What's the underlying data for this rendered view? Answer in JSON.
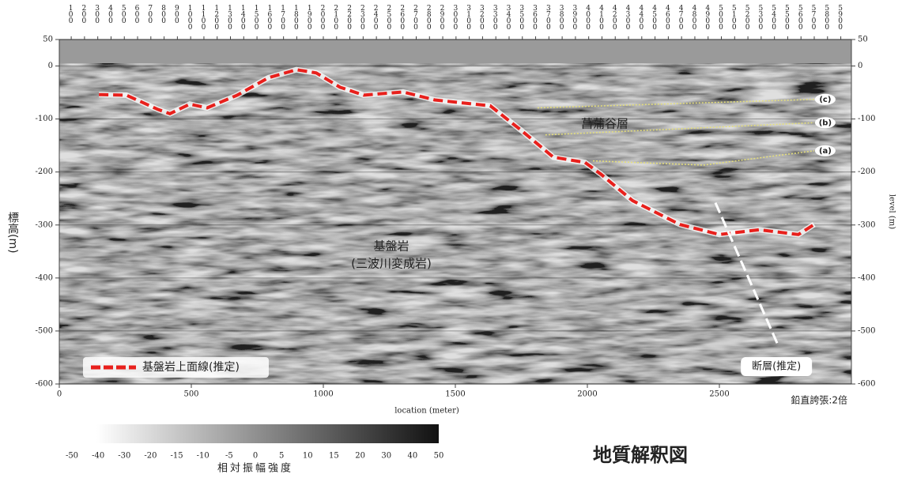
{
  "chart_data": {
    "type": "line",
    "title": "地質解釈図",
    "x_label": "location (meter)",
    "y_label": "標高(m)",
    "y2_label": "level (m)",
    "xlim": [
      0,
      3000
    ],
    "xticks": [
      0,
      500,
      1000,
      1500,
      2000,
      2500
    ],
    "ylim": [
      -600,
      50
    ],
    "yticks": [
      50,
      0,
      -100,
      -200,
      -300,
      -400,
      -500,
      -600
    ],
    "y2lim": [
      -600,
      50
    ],
    "y2ticks": [
      50,
      0,
      -100,
      -200,
      -300,
      -400,
      -500,
      -600
    ],
    "x2lim": [
      10,
      5980
    ],
    "x2ticks": [
      100,
      200,
      300,
      400,
      500,
      600,
      700,
      800,
      900,
      1000,
      1100,
      1200,
      1300,
      1400,
      1500,
      1600,
      1700,
      1800,
      1900,
      2000,
      2100,
      2200,
      2300,
      2400,
      2500,
      2600,
      2700,
      2800,
      2900,
      3000,
      3100,
      3200,
      3300,
      3400,
      3500,
      3600,
      3700,
      3800,
      3900,
      4000,
      4100,
      4200,
      4300,
      4400,
      4500,
      4600,
      4700,
      4800,
      4900,
      5000,
      5100,
      5200,
      5300,
      5400,
      5500,
      5600,
      5700,
      5800,
      5900
    ],
    "series": [
      {
        "name": "基盤岩上面線(推定)",
        "color": "#e8201c",
        "style": "legend",
        "x": [
          150,
          254,
          374,
          419,
          494,
          560,
          674,
          793,
          898,
          973,
          1063,
          1153,
          1302,
          1422,
          1572,
          1632,
          1751,
          1871,
          1991,
          2051,
          2171,
          2350,
          2500,
          2650,
          2799,
          2859
        ],
        "values": [
          -54,
          -55,
          -82,
          -90,
          -72,
          -79,
          -55,
          -22,
          -7,
          -13,
          -40,
          -55,
          -49,
          -64,
          -72,
          -75,
          -122,
          -172,
          -182,
          -204,
          -254,
          -299,
          -318,
          -309,
          -318,
          -299
        ]
      },
      {
        "name": "(c)",
        "color": "#e6e07a",
        "style": "end-label",
        "x": [
          1811,
          2859
        ],
        "values": [
          -79,
          -63
        ]
      },
      {
        "name": "(b)",
        "color": "#e6e07a",
        "style": "end-label",
        "x": [
          1841,
          2859
        ],
        "values": [
          -130,
          -107
        ]
      },
      {
        "name": "(a)",
        "color": "#e6e07a",
        "style": "end-label",
        "x": [
          2021,
          2440,
          2859
        ],
        "values": [
          -179,
          -187,
          -160
        ]
      },
      {
        "name": "断層(推定)",
        "color": "#ffffff",
        "style": "fault",
        "x": [
          2485,
          2725
        ],
        "values": [
          -258,
          -530
        ]
      }
    ],
    "annotations": {
      "bedrock": "基盤岩",
      "bedrock_note": "(三波川変成岩)",
      "formation": "菖蒲谷層",
      "exaggeration": "鉛直誇張:2倍"
    },
    "colorbar": {
      "title": "相対振幅強度",
      "ticks": [
        -50,
        -40,
        -30,
        -20,
        -15,
        -10,
        -5,
        0,
        5,
        10,
        15,
        20,
        30,
        40,
        50
      ]
    }
  }
}
